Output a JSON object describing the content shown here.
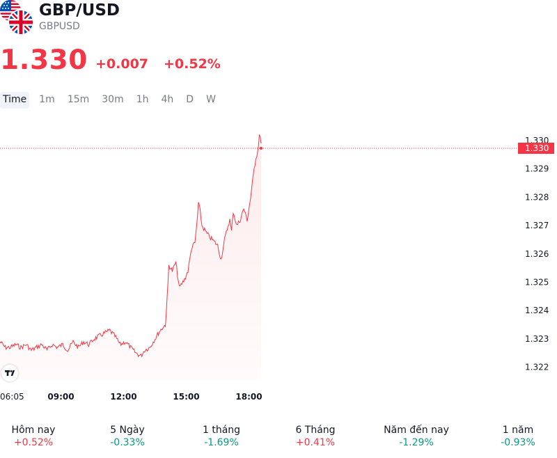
{
  "header": {
    "symbol_title": "GBP/USD",
    "symbol_code": "GBPUSD",
    "flags": [
      "us-flag-icon",
      "uk-flag-icon"
    ]
  },
  "quote": {
    "price": "1.330",
    "change": "+0.007",
    "change_pct": "+0.52%",
    "color": "#f23645"
  },
  "intervals": [
    "Time",
    "1m",
    "15m",
    "30m",
    "1h",
    "4h",
    "D",
    "W"
  ],
  "active_interval": "Time",
  "chart_data": {
    "type": "area",
    "x_tick_labels": [
      "06:05",
      "09:00",
      "12:00",
      "15:00",
      "18:00"
    ],
    "y_tick_labels": [
      "1.330",
      "1.329",
      "1.328",
      "1.327",
      "1.326",
      "1.325",
      "1.324",
      "1.323",
      "1.322"
    ],
    "ylim": [
      1.3217,
      1.3304
    ],
    "last_price_label": "1.330",
    "line_color": "#f23645",
    "points": [
      [
        "06:05",
        1.3229
      ],
      [
        "06:20",
        1.3227
      ],
      [
        "06:35",
        1.3227
      ],
      [
        "06:50",
        1.3228
      ],
      [
        "07:05",
        1.3227
      ],
      [
        "07:20",
        1.3228
      ],
      [
        "07:35",
        1.3226
      ],
      [
        "07:50",
        1.3227
      ],
      [
        "08:05",
        1.3228
      ],
      [
        "08:20",
        1.3226
      ],
      [
        "08:35",
        1.3228
      ],
      [
        "08:50",
        1.3227
      ],
      [
        "09:05",
        1.3228
      ],
      [
        "09:20",
        1.3226
      ],
      [
        "09:35",
        1.3229
      ],
      [
        "09:50",
        1.3227
      ],
      [
        "10:05",
        1.3229
      ],
      [
        "10:20",
        1.3228
      ],
      [
        "10:35",
        1.323
      ],
      [
        "10:50",
        1.3231
      ],
      [
        "11:05",
        1.3232
      ],
      [
        "11:20",
        1.3233
      ],
      [
        "11:35",
        1.3231
      ],
      [
        "11:50",
        1.3228
      ],
      [
        "12:05",
        1.3229
      ],
      [
        "12:20",
        1.3227
      ],
      [
        "12:35",
        1.3225
      ],
      [
        "12:50",
        1.3224
      ],
      [
        "13:00",
        1.3226
      ],
      [
        "13:15",
        1.3227
      ],
      [
        "13:30",
        1.323
      ],
      [
        "13:45",
        1.3233
      ],
      [
        "14:00",
        1.3235
      ],
      [
        "14:05",
        1.3244
      ],
      [
        "14:10",
        1.3256
      ],
      [
        "14:20",
        1.3254
      ],
      [
        "14:30",
        1.3257
      ],
      [
        "14:40",
        1.3248
      ],
      [
        "14:55",
        1.3251
      ],
      [
        "15:05",
        1.3254
      ],
      [
        "15:15",
        1.3262
      ],
      [
        "15:25",
        1.3264
      ],
      [
        "15:30",
        1.327
      ],
      [
        "15:35",
        1.3278
      ],
      [
        "15:40",
        1.3275
      ],
      [
        "15:45",
        1.327
      ],
      [
        "16:00",
        1.3267
      ],
      [
        "16:15",
        1.3265
      ],
      [
        "16:30",
        1.3263
      ],
      [
        "16:40",
        1.3258
      ],
      [
        "16:50",
        1.3265
      ],
      [
        "17:00",
        1.327
      ],
      [
        "17:05",
        1.3272
      ],
      [
        "17:10",
        1.3268
      ],
      [
        "17:15",
        1.3275
      ],
      [
        "17:25",
        1.327
      ],
      [
        "17:35",
        1.3272
      ],
      [
        "17:45",
        1.3276
      ],
      [
        "17:55",
        1.3272
      ],
      [
        "18:00",
        1.3276
      ],
      [
        "18:05",
        1.328
      ],
      [
        "18:10",
        1.3285
      ],
      [
        "18:15",
        1.329
      ],
      [
        "18:20",
        1.3294
      ],
      [
        "18:25",
        1.3296
      ],
      [
        "18:30",
        1.3302
      ],
      [
        "18:35",
        1.3299
      ]
    ]
  },
  "performance": [
    {
      "label": "Hôm nay",
      "value": "+0.52%",
      "direction": "up"
    },
    {
      "label": "5 Ngày",
      "value": "-0.33%",
      "direction": "down"
    },
    {
      "label": "1 tháng",
      "value": "-1.69%",
      "direction": "down"
    },
    {
      "label": "6 Tháng",
      "value": "+0.41%",
      "direction": "up"
    },
    {
      "label": "Năm đến nay",
      "value": "-1.29%",
      "direction": "down"
    },
    {
      "label": "1 năm",
      "value": "-0.93%",
      "direction": "down"
    }
  ],
  "branding": {
    "logo": "tradingview-logo-icon"
  }
}
